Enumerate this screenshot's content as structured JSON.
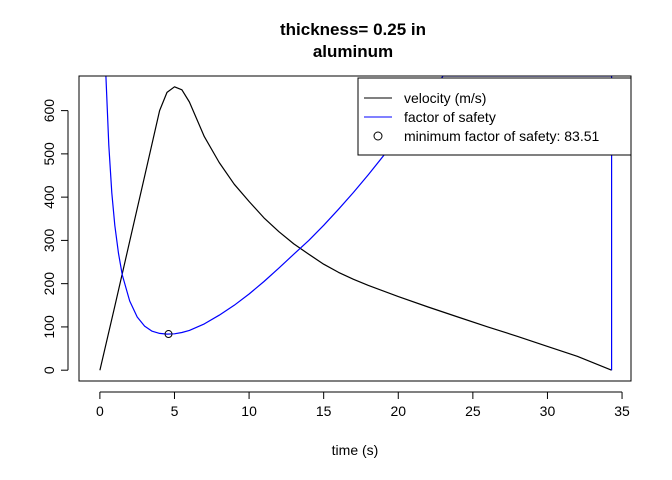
{
  "chart_data": {
    "type": "line",
    "title": "thickness= 0.25 in",
    "subtitle": "aluminum",
    "xlabel": "time (s)",
    "ylabel": "",
    "xlim": [
      -1.4,
      35.6
    ],
    "ylim": [
      -25,
      680
    ],
    "xticks": [
      0,
      5,
      10,
      15,
      20,
      25,
      30,
      35
    ],
    "yticks": [
      0,
      100,
      200,
      300,
      400,
      500,
      600
    ],
    "series": [
      {
        "name": "velocity (m/s)",
        "color": "#000000",
        "x": [
          0,
          1,
          2,
          3,
          4,
          4.5,
          5,
          5.5,
          6,
          7,
          8,
          9,
          10,
          11,
          12,
          13,
          14,
          15,
          16,
          17,
          18,
          20,
          22,
          24,
          26,
          28,
          30,
          32,
          34.3
        ],
        "y": [
          0,
          148,
          298,
          448,
          600,
          642,
          655,
          648,
          620,
          540,
          480,
          430,
          390,
          352,
          320,
          292,
          268,
          245,
          226,
          210,
          196,
          170,
          146,
          123,
          100,
          78,
          55,
          32,
          0
        ]
      },
      {
        "name": "factor of safety",
        "color": "#0000ff",
        "x": [
          0.4,
          0.6,
          0.8,
          1,
          1.25,
          1.5,
          2,
          2.5,
          3,
          3.5,
          4,
          4.5,
          5,
          5.5,
          6,
          7,
          8,
          9,
          10,
          11,
          12,
          13,
          14,
          15,
          16,
          17,
          18,
          19,
          20,
          20.5,
          21,
          22,
          23,
          24,
          25,
          26,
          27,
          28,
          29,
          30,
          31,
          32,
          33,
          34,
          34.3,
          34.3
        ],
        "y": [
          680,
          520,
          410,
          335,
          270,
          220,
          160,
          123,
          102,
          90,
          85,
          83.51,
          84,
          87,
          92,
          107,
          127,
          150,
          176,
          205,
          236,
          268,
          300,
          335,
          372,
          411,
          452,
          495,
          540,
          563,
          586,
          632,
          680,
          680,
          680,
          680,
          680,
          680,
          680,
          680,
          680,
          680,
          680,
          680,
          680,
          0
        ]
      }
    ],
    "point": {
      "name": "minimum factor of safety: 83.51",
      "x": 4.6,
      "y": 83.51
    },
    "legend": {
      "placement": "top-right",
      "entries": [
        {
          "label": "velocity (m/s)",
          "symbol": "line",
          "color": "#000000"
        },
        {
          "label": "factor of safety",
          "symbol": "line",
          "color": "#0000ff"
        },
        {
          "label": "minimum factor of safety: 83.51",
          "symbol": "circle",
          "color": "#000000"
        }
      ]
    }
  }
}
